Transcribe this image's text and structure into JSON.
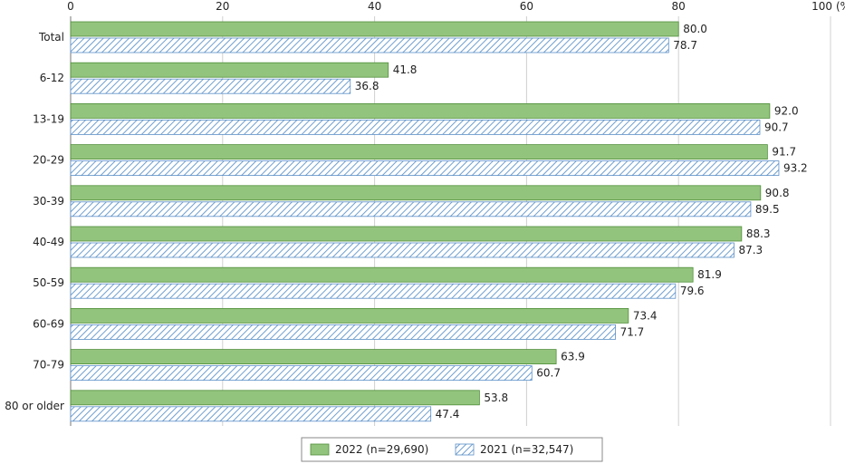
{
  "chart_data": {
    "type": "bar",
    "orientation": "horizontal",
    "categories": [
      "Total",
      "6-12",
      "13-19",
      "20-29",
      "30-39",
      "40-49",
      "50-59",
      "60-69",
      "70-79",
      "80 or older"
    ],
    "series": [
      {
        "name": "2022  (n=29,690)",
        "color": "#93c47d",
        "pattern": "solid",
        "values": [
          80.0,
          41.8,
          92.0,
          91.7,
          90.8,
          88.3,
          81.9,
          73.4,
          63.9,
          53.8
        ],
        "labels": [
          "80.0",
          "41.8",
          "92.0",
          "91.7",
          "90.8",
          "88.3",
          "81.9",
          "73.4",
          "63.9",
          "53.8"
        ]
      },
      {
        "name": "2021  (n=32,547)",
        "color": "#9fc5e8",
        "pattern": "hatched",
        "values": [
          78.7,
          36.8,
          90.7,
          93.2,
          89.5,
          87.3,
          79.6,
          71.7,
          60.7,
          47.4
        ],
        "labels": [
          "78.7",
          "36.8",
          "90.7",
          "93.2",
          "89.5",
          "87.3",
          "79.6",
          "71.7",
          "60.7",
          "47.4"
        ]
      }
    ],
    "xlim": [
      0,
      100
    ],
    "ticks": [
      {
        "value": 0,
        "label": "0"
      },
      {
        "value": 20,
        "label": "20"
      },
      {
        "value": 40,
        "label": "40"
      },
      {
        "value": 60,
        "label": "60"
      },
      {
        "value": 80,
        "label": "80"
      },
      {
        "value": 100,
        "label": "100"
      }
    ],
    "unit_label": "(%)",
    "grid": true,
    "legend_position": "bottom"
  }
}
